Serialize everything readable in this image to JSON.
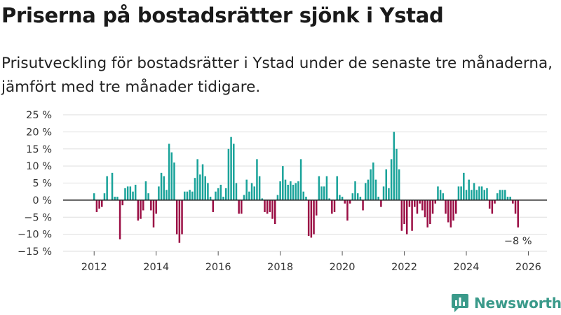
{
  "title": "Priserna på bostadsrätter sjönk i Ystad",
  "subtitle": "Prisutveckling för bostadsrätter i Ystad under de senaste tre månaderna, jämfört med tre månader tidigare.",
  "brand": {
    "name": "Newsworthy",
    "logo_icon": "bar-chart-logo-icon",
    "color": "#3a9a8a"
  },
  "colors": {
    "positive": "#1aa39a",
    "negative": "#9b0f45",
    "grid": "#dddddd",
    "zero": "#222222"
  },
  "chart_data": {
    "type": "bar",
    "title": "Priserna på bostadsrätter sjönk i Ystad",
    "xlabel": "",
    "ylabel": "",
    "ylim": [
      -15,
      25
    ],
    "y_ticks": [
      -15,
      -10,
      -5,
      0,
      5,
      10,
      15,
      20,
      25
    ],
    "y_tick_labels": [
      "−15 %",
      "−10 %",
      "−5 %",
      "0 %",
      "5 %",
      "10 %",
      "15 %",
      "20 %",
      "25 %"
    ],
    "x_range": [
      2011.0,
      2026.6
    ],
    "x_ticks": [
      2012,
      2014,
      2016,
      2018,
      2020,
      2022,
      2024,
      2026
    ],
    "x_tick_labels": [
      "2012",
      "2014",
      "2016",
      "2018",
      "2020",
      "2022",
      "2024",
      "2026"
    ],
    "start": 2012.0,
    "step_months": 1,
    "unit": "%",
    "values": [
      2,
      -3.5,
      -2.5,
      -2,
      2,
      7,
      0,
      8,
      1,
      1,
      -11.5,
      -1.5,
      3.5,
      4,
      4,
      2.5,
      4.5,
      -6,
      -5.5,
      -3,
      5.5,
      2,
      -3,
      -8,
      -4,
      4,
      8,
      7,
      3,
      16.5,
      14,
      11,
      -10,
      -12.5,
      -10,
      2.5,
      2.5,
      3,
      2.5,
      6.5,
      12,
      7.5,
      10.5,
      7,
      5,
      1,
      -3.5,
      2.5,
      3.5,
      4.5,
      1,
      3.5,
      15,
      18.5,
      16.5,
      5,
      -4,
      -4,
      1.5,
      6,
      2.5,
      5,
      4,
      12,
      7,
      0.5,
      -3.5,
      -4,
      -3.5,
      -5.5,
      -7,
      1.5,
      5.5,
      10,
      6,
      4.5,
      5.5,
      4.5,
      5,
      5.5,
      12,
      2.5,
      1,
      -10.5,
      -11,
      -10,
      -4.5,
      7,
      4,
      4,
      7,
      0.5,
      -4,
      -3.5,
      7,
      1.5,
      1,
      -1,
      -6,
      -1,
      2,
      5.5,
      2,
      1,
      -3,
      5,
      6,
      9,
      11,
      6,
      1,
      -2,
      4,
      9,
      3.5,
      12,
      20,
      15,
      9,
      -9,
      -7,
      -10,
      -2,
      -9,
      -2,
      -4,
      -1,
      -3,
      -5,
      -8,
      -7,
      -4,
      -1,
      4,
      3,
      2,
      -4,
      -6.5,
      -8,
      -6,
      -4,
      4,
      4,
      8,
      3,
      6,
      3,
      5,
      3,
      4,
      4,
      3,
      3.5,
      -2.5,
      -4,
      -1,
      2,
      3,
      3,
      3,
      1,
      1,
      -1,
      -4,
      -8
    ],
    "annotations": [
      {
        "text": "−8 %",
        "target": "last"
      }
    ]
  }
}
